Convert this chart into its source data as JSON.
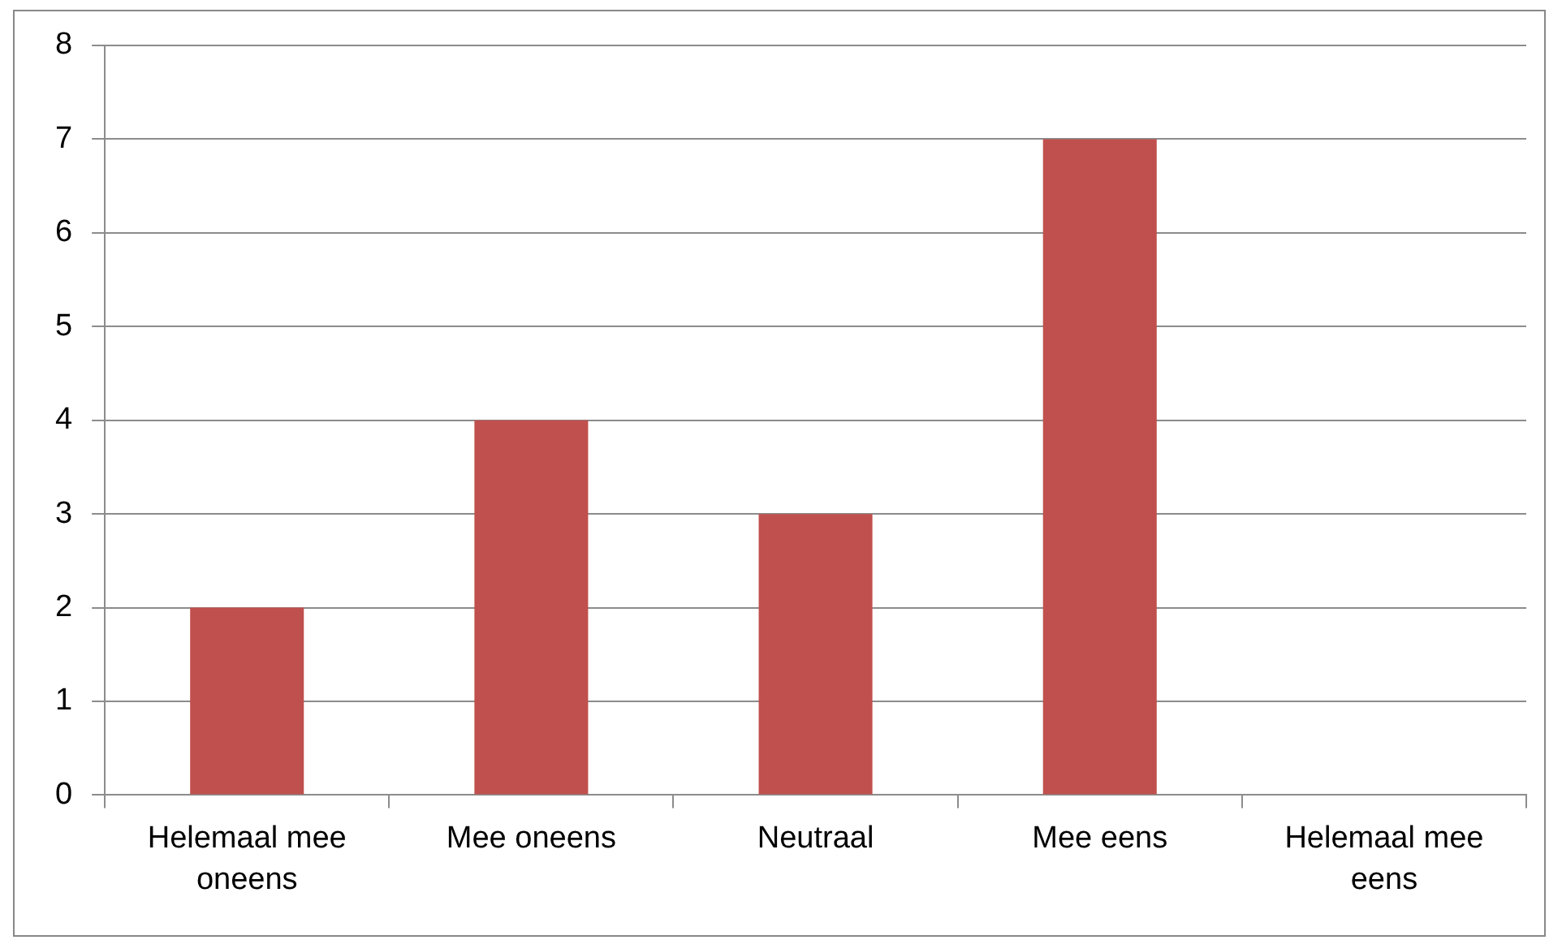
{
  "chart_data": {
    "type": "bar",
    "categories": [
      "Helemaal mee oneens",
      "Mee oneens",
      "Neutraal",
      "Mee eens",
      "Helemaal mee eens"
    ],
    "values": [
      2,
      4,
      3,
      7,
      0
    ],
    "color": "#c0504d",
    "ylim": [
      0,
      8
    ],
    "yticks": [
      0,
      1,
      2,
      3,
      4,
      5,
      6,
      7,
      8
    ],
    "grid": "y",
    "legend": false
  }
}
